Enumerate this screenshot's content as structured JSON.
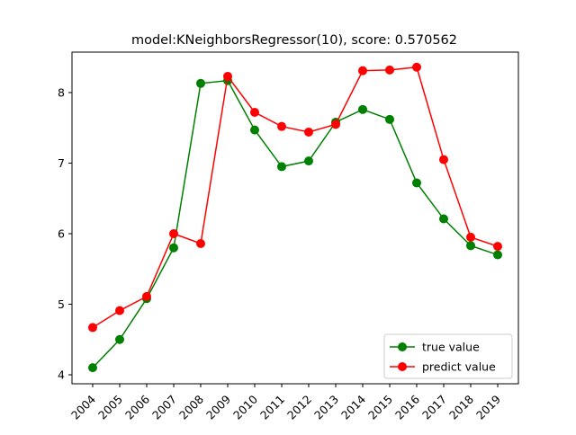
{
  "chart_data": {
    "type": "line",
    "title": "model:KNeighborsRegressor(10), score: 0.570562",
    "xlabel": "",
    "ylabel": "",
    "categories": [
      "2004",
      "2005",
      "2006",
      "2007",
      "2008",
      "2009",
      "2010",
      "2011",
      "2012",
      "2013",
      "2014",
      "2015",
      "2016",
      "2017",
      "2018",
      "2019"
    ],
    "ylim": [
      3.9,
      8.6
    ],
    "yticks": [
      4,
      5,
      6,
      7,
      8
    ],
    "grid": false,
    "legend_position": "lower-right",
    "series": [
      {
        "name": "true value",
        "color": "#008000",
        "values": [
          4.1,
          4.5,
          5.08,
          5.8,
          8.13,
          8.17,
          7.47,
          6.95,
          7.03,
          7.58,
          7.76,
          7.62,
          6.72,
          6.21,
          5.83,
          5.7
        ]
      },
      {
        "name": "predict value",
        "color": "#ff0000",
        "values": [
          4.67,
          4.91,
          5.11,
          6.0,
          5.86,
          8.23,
          7.72,
          7.52,
          7.44,
          7.55,
          8.31,
          8.32,
          8.36,
          7.05,
          5.95,
          5.82
        ]
      }
    ]
  }
}
